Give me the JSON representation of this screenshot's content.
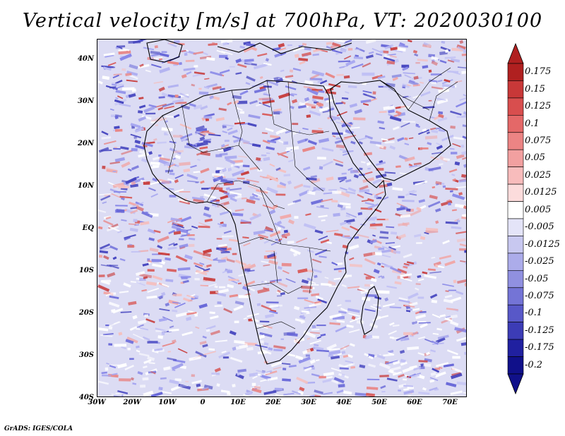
{
  "title": "Vertical velocity [m/s] at 700hPa, VT: 2020030100",
  "lat_labels": [
    "40N",
    "30N",
    "20N",
    "10N",
    "EQ",
    "10S",
    "20S",
    "30S",
    "40S"
  ],
  "lon_labels": [
    "30W",
    "20W",
    "10W",
    "0",
    "10E",
    "20E",
    "30E",
    "40E",
    "50E",
    "60E",
    "70E"
  ],
  "colorbar": {
    "labels": [
      "0.175",
      "0.15",
      "0.125",
      "0.1",
      "0.075",
      "0.05",
      "0.025",
      "0.0125",
      "0.005",
      "-0.005",
      "-0.0125",
      "-0.025",
      "-0.05",
      "-0.075",
      "-0.1",
      "-0.125",
      "-0.175",
      "-0.2"
    ],
    "colors": [
      "#b02020",
      "#c83838",
      "#d84e4e",
      "#e46868",
      "#ec8484",
      "#f2a0a0",
      "#f8bcbc",
      "#fcdcdc",
      "#ffffff",
      "#e4e4f8",
      "#c8c8f0",
      "#acacea",
      "#9090e0",
      "#7474d6",
      "#5858c8",
      "#3c3cb6",
      "#2020a0",
      "#10108a"
    ]
  },
  "credit": "GrADS: IGES/COLA",
  "colors": {
    "positive": "#e06060",
    "negative": "#6060e0",
    "background": "#ffffff"
  }
}
